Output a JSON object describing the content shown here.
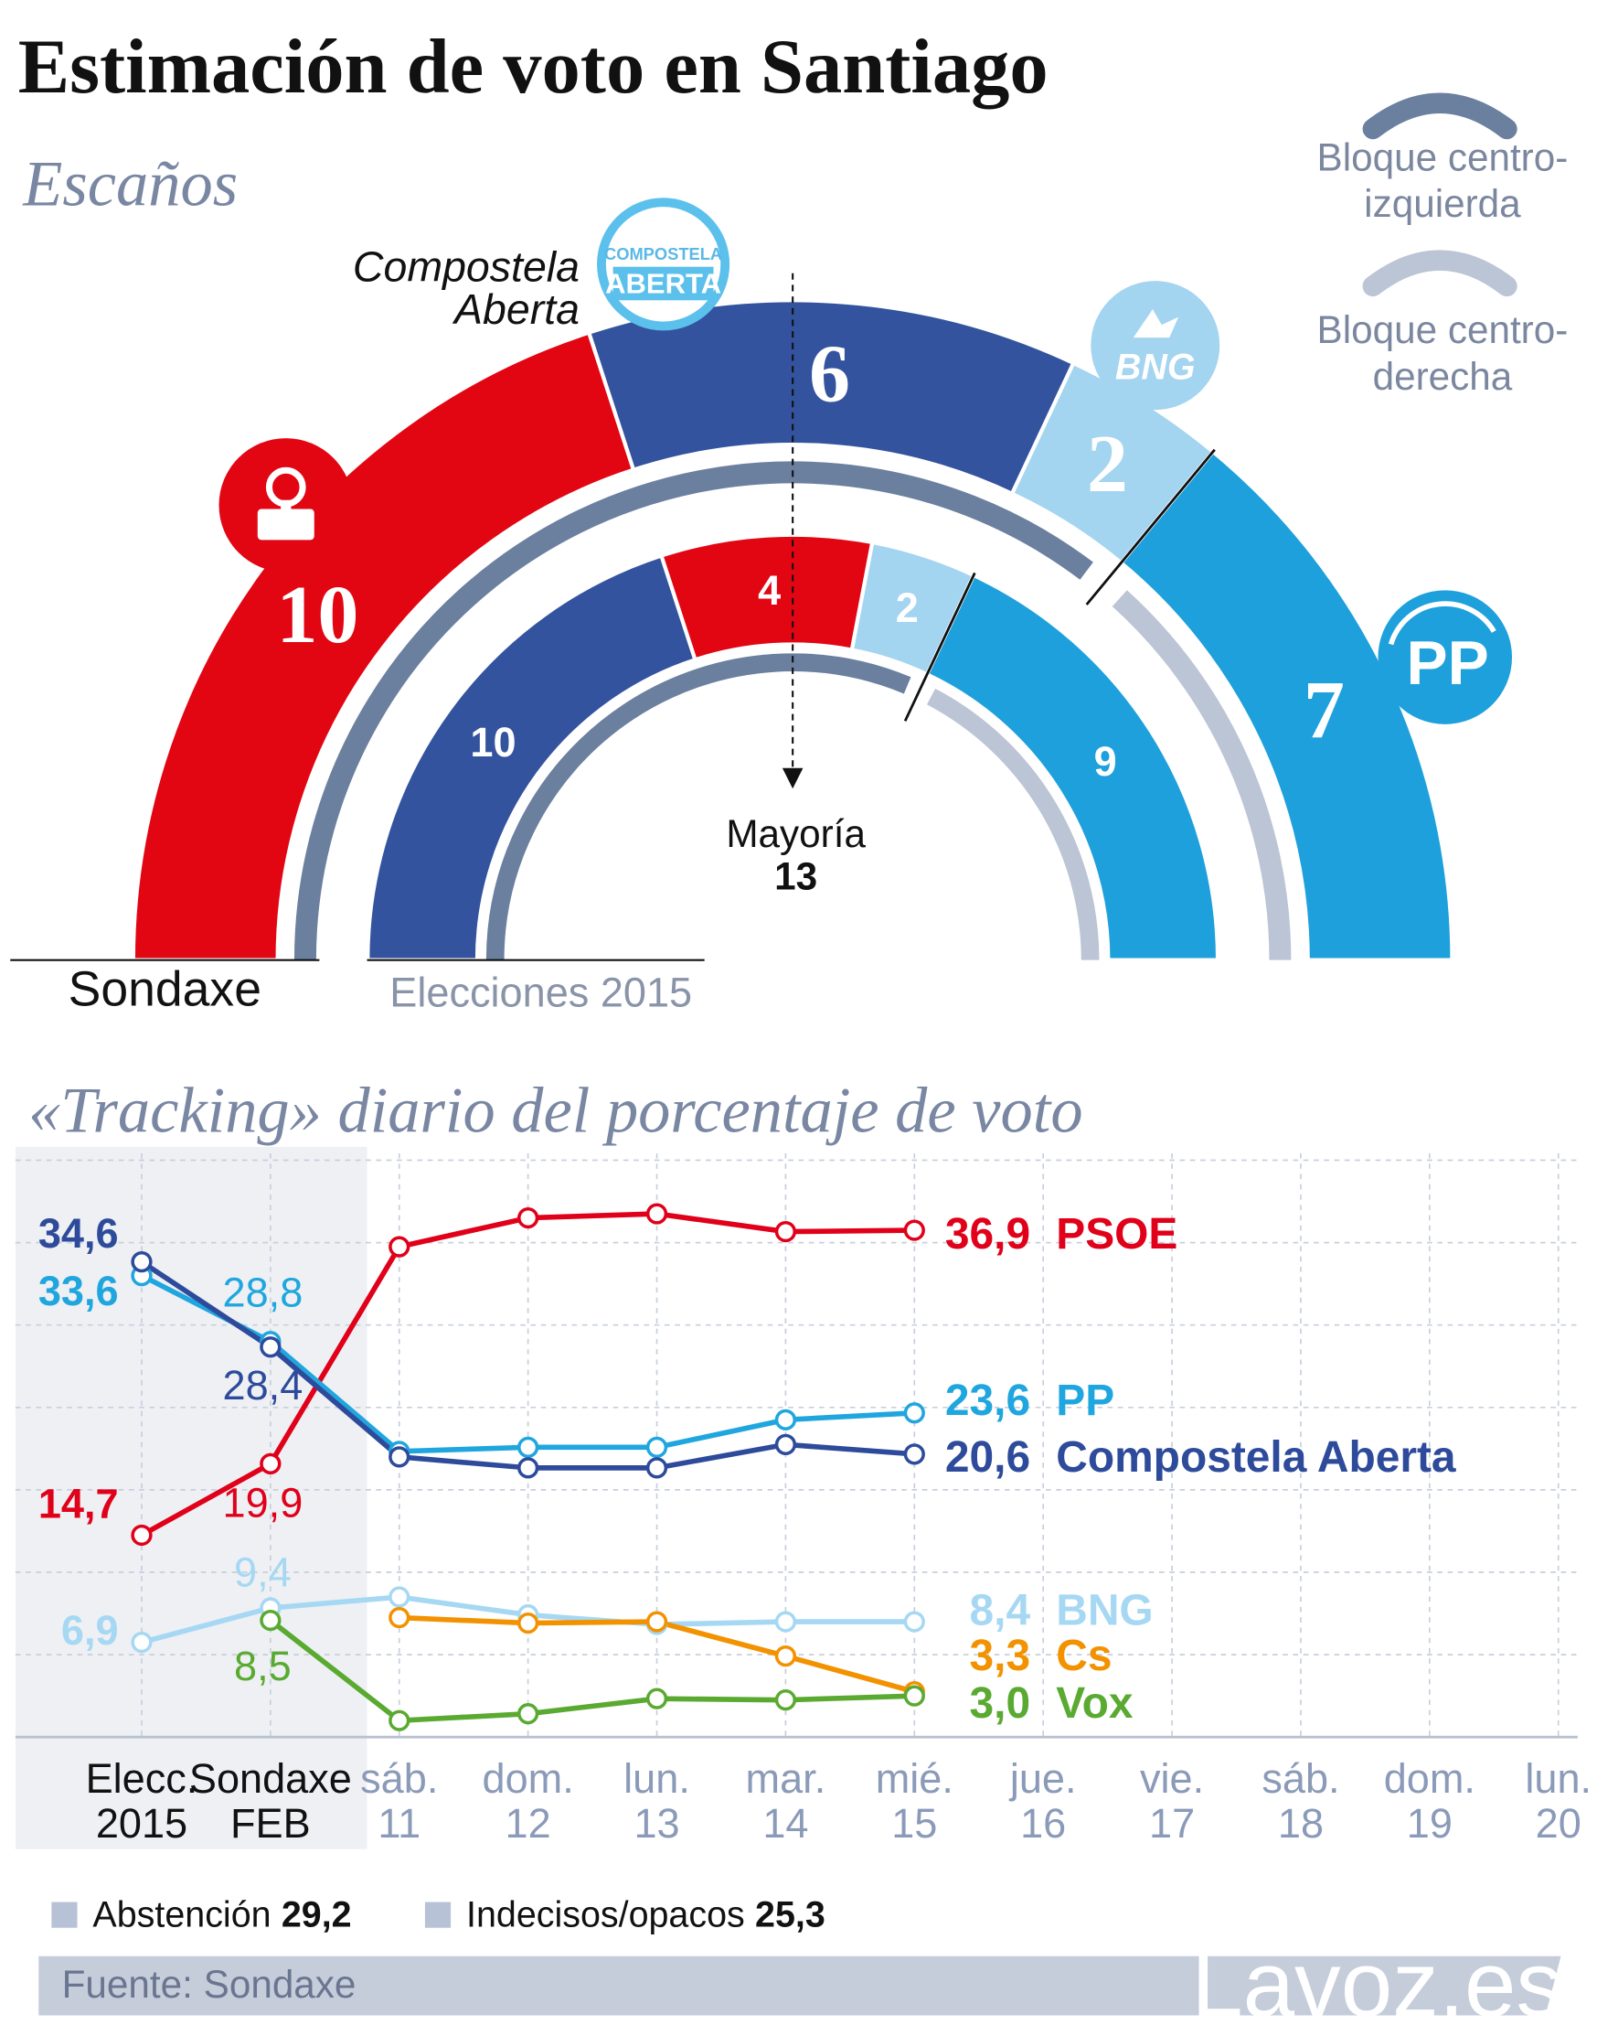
{
  "title": "Estimación de voto en Santiago",
  "chart_data": [
    {
      "type": "parliament",
      "title": "Escaños",
      "rings": [
        {
          "name": "Sondaxe",
          "blocs": [
            {
              "values": [
                10,
                6,
                2
              ],
              "colors": [
                "#e20613",
                "#34539e",
                "#a3d4f0"
              ]
            },
            {
              "values": [
                7
              ],
              "colors": [
                "#1ea0dc"
              ]
            }
          ]
        },
        {
          "name": "Elecciones 2015",
          "blocs": [
            {
              "values": [
                10,
                4,
                2
              ],
              "colors": [
                "#34539e",
                "#e20613",
                "#a3d4f0"
              ]
            },
            {
              "values": [
                9
              ],
              "colors": [
                "#1ea0dc"
              ]
            }
          ]
        }
      ],
      "majority": {
        "label": "Mayoría",
        "value": 13
      },
      "legend": [
        {
          "label": [
            "Bloque centro-",
            "izquierda"
          ],
          "color": "#6b7f9f"
        },
        {
          "label": [
            "Bloque centro-",
            "derecha"
          ],
          "color": "#bcc5d5"
        }
      ],
      "party_label": [
        "Compostela",
        "Aberta"
      ],
      "logos": [
        [
          "COMPOSTELA",
          "ABERTA"
        ],
        [
          "BNG"
        ],
        [
          "PP"
        ]
      ]
    },
    {
      "type": "line",
      "title": "«Tracking» diario del porcentaje de voto",
      "categories": [
        [
          "Elecc.",
          "2015"
        ],
        [
          "Sondaxe",
          "FEB"
        ],
        [
          "sáb.",
          "11"
        ],
        [
          "dom.",
          "12"
        ],
        [
          "lun.",
          "13"
        ],
        [
          "mar.",
          "14"
        ],
        [
          "mié.",
          "15"
        ],
        [
          "jue.",
          "16"
        ],
        [
          "vie.",
          "17"
        ],
        [
          "sáb.",
          "18"
        ],
        [
          "dom.",
          "19"
        ],
        [
          "lun.",
          "20"
        ]
      ],
      "ylim": [
        0,
        42.5
      ],
      "yticks": [
        6,
        12,
        18,
        24,
        30,
        36,
        42
      ],
      "grid": true,
      "series": [
        {
          "name": "PSOE",
          "color": "#e1001a",
          "values": [
            14.7,
            19.9,
            35.7,
            37.8,
            38.1,
            36.8,
            36.9,
            null,
            null,
            null,
            null,
            null
          ],
          "value_labels": [
            "14,7",
            "19,9",
            null,
            null,
            null,
            null,
            "36,9",
            null,
            null,
            null,
            null,
            null
          ]
        },
        {
          "name": "PP",
          "color": "#20a6de",
          "values": [
            33.6,
            28.8,
            20.8,
            21.1,
            21.1,
            23.1,
            23.6,
            null,
            null,
            null,
            null,
            null
          ],
          "value_labels": [
            "33,6",
            "28,8",
            null,
            null,
            null,
            null,
            "23,6",
            null,
            null,
            null,
            null,
            null
          ]
        },
        {
          "name": "Compostela Aberta",
          "color": "#2e4b9b",
          "values": [
            34.6,
            28.4,
            20.4,
            19.6,
            19.6,
            21.3,
            20.6,
            null,
            null,
            null,
            null,
            null
          ],
          "value_labels": [
            "34,6",
            "28,4",
            null,
            null,
            null,
            null,
            "20,6",
            null,
            null,
            null,
            null,
            null
          ]
        },
        {
          "name": "BNG",
          "color": "#a6d8f3",
          "values": [
            6.9,
            9.4,
            10.2,
            8.9,
            8.2,
            8.4,
            8.4,
            null,
            null,
            null,
            null,
            null
          ],
          "value_labels": [
            "6,9",
            "9,4",
            null,
            null,
            null,
            null,
            "8,4",
            null,
            null,
            null,
            null,
            null
          ]
        },
        {
          "name": "Cs",
          "color": "#f39200",
          "values": [
            null,
            null,
            8.7,
            8.3,
            8.4,
            5.9,
            3.3,
            null,
            null,
            null,
            null,
            null
          ],
          "value_labels": [
            null,
            null,
            null,
            null,
            null,
            null,
            "3,3",
            null,
            null,
            null,
            null,
            null
          ]
        },
        {
          "name": "Vox",
          "color": "#5aaa32",
          "values": [
            null,
            8.5,
            1.2,
            1.7,
            2.8,
            2.7,
            3.0,
            null,
            null,
            null,
            null,
            null
          ],
          "value_labels": [
            null,
            "8,5",
            null,
            null,
            null,
            null,
            "3,0",
            null,
            null,
            null,
            null,
            null
          ]
        }
      ]
    }
  ],
  "notes": [
    {
      "label": "Abstención",
      "value": "29,2",
      "color": "#b8c2d6"
    },
    {
      "label": "Indecisos/opacos",
      "value": "25,3",
      "color": "#b8c2d6"
    }
  ],
  "source": "Fuente: Sondaxe",
  "watermark": "Lavoz.es"
}
